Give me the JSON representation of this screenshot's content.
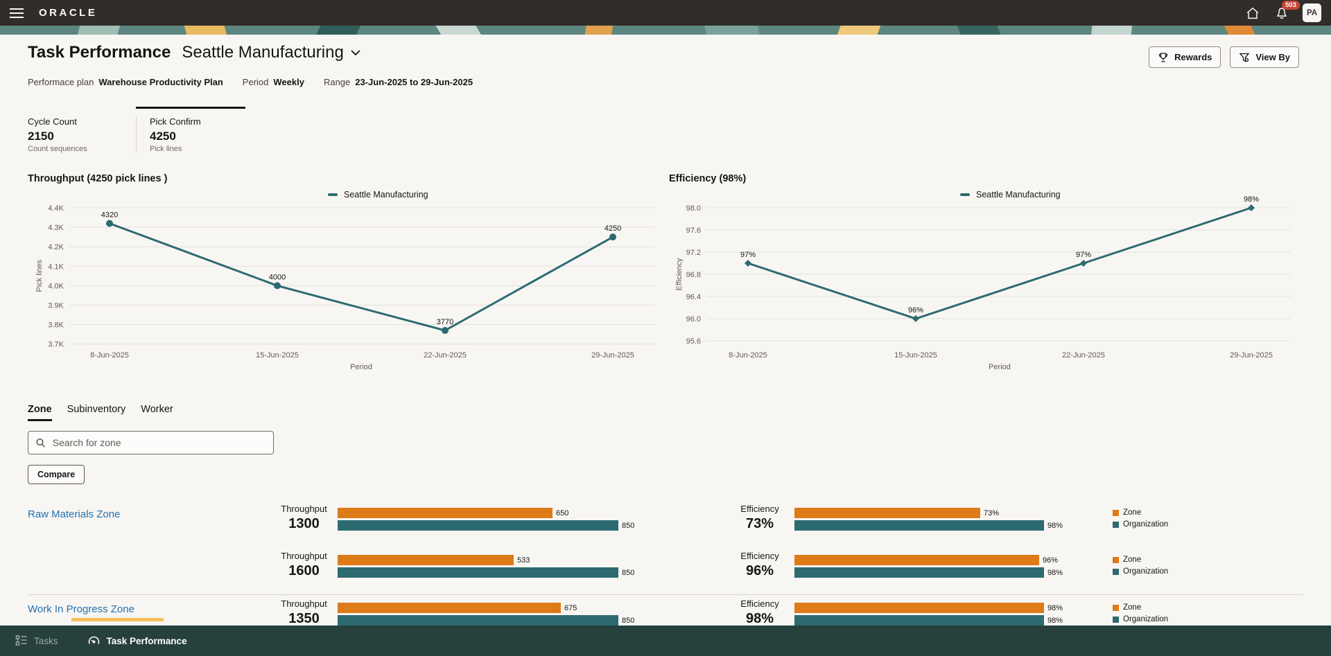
{
  "topbar": {
    "brand": "ORACLE",
    "notification_count": "503",
    "avatar_initials": "PA"
  },
  "header": {
    "title": "Task Performance",
    "org_selector": "Seattle Manufacturing",
    "rewards_label": "Rewards",
    "view_by_label": "View By"
  },
  "meta": {
    "plan_label": "Performace plan",
    "plan_value": "Warehouse Productivity Plan",
    "period_label": "Period",
    "period_value": "Weekly",
    "range_label": "Range",
    "range_value": "23-Jun-2025 to 29-Jun-2025"
  },
  "kpis": [
    {
      "title": "Cycle Count",
      "value": "2150",
      "subtitle": "Count sequences",
      "selected": false
    },
    {
      "title": "Pick Confirm",
      "value": "4250",
      "subtitle": "Pick lines",
      "selected": true
    }
  ],
  "chart_data": [
    {
      "type": "line",
      "title": "Throughput (4250 pick lines )",
      "legend": "Seattle Manufacturing",
      "x": [
        "8-Jun-2025",
        "15-Jun-2025",
        "22-Jun-2025",
        "29-Jun-2025"
      ],
      "values": [
        4320,
        4000,
        3770,
        4250
      ],
      "point_labels": [
        "4320",
        "4000",
        "3770",
        "4250"
      ],
      "xlabel": "Period",
      "ylabel": "Pick lines",
      "ytick_labels": [
        "4.4K",
        "4.3K",
        "4.2K",
        "4.1K",
        "4.0K",
        "3.9K",
        "3.8K",
        "3.7K"
      ],
      "ylim": [
        3700,
        4400
      ],
      "grid": true,
      "legend_position": "top",
      "marker": "circle",
      "line_color": "#2c6b70"
    },
    {
      "type": "line",
      "title": "Efficiency (98%)",
      "legend": "Seattle Manufacturing",
      "x": [
        "8-Jun-2025",
        "15-Jun-2025",
        "22-Jun-2025",
        "29-Jun-2025"
      ],
      "values": [
        97,
        96,
        97,
        98
      ],
      "point_labels": [
        "97%",
        "96%",
        "97%",
        "98%"
      ],
      "xlabel": "Period",
      "ylabel": "Efficiency",
      "ytick_labels": [
        "98.0",
        "97.6",
        "97.2",
        "96.8",
        "96.4",
        "96.0",
        "95.6"
      ],
      "ylim": [
        95.6,
        98.0
      ],
      "grid": true,
      "legend_position": "top",
      "marker": "diamond",
      "line_color": "#2c6b70"
    }
  ],
  "tabs": [
    {
      "label": "Zone",
      "active": true
    },
    {
      "label": "Subinventory",
      "active": false
    },
    {
      "label": "Worker",
      "active": false
    }
  ],
  "search": {
    "placeholder": "Search for zone"
  },
  "compare_label": "Compare",
  "zone_list": {
    "throughput_max": 850,
    "efficiency_max": 98,
    "legend": [
      {
        "label": "Zone",
        "color": "#dd7b19"
      },
      {
        "label": "Organization",
        "color": "#2c6b70"
      }
    ],
    "blocks": [
      {
        "name": "Raw Materials Zone",
        "highlighted": false,
        "rows": [
          {
            "metric_label": "Throughput",
            "metric_value": "1300",
            "zone_value": 650,
            "zone_label": "650",
            "org_value": 850,
            "org_label": "850",
            "eff_label": "Efficiency",
            "eff_value": "73%",
            "eff_zone": 73,
            "eff_zone_label": "73%",
            "eff_org": 98,
            "eff_org_label": "98%"
          },
          {
            "metric_label": "Throughput",
            "metric_value": "1600",
            "zone_value": 533,
            "zone_label": "533",
            "org_value": 850,
            "org_label": "850",
            "eff_label": "Efficiency",
            "eff_value": "96%",
            "eff_zone": 96,
            "eff_zone_label": "96%",
            "eff_org": 98,
            "eff_org_label": "98%"
          }
        ]
      },
      {
        "name": "Work In Progress Zone",
        "highlighted": true,
        "rows": [
          {
            "metric_label": "Throughput",
            "metric_value": "1350",
            "zone_value": 675,
            "zone_label": "675",
            "org_value": 850,
            "org_label": "850",
            "eff_label": "Efficiency",
            "eff_value": "98%",
            "eff_zone": 98,
            "eff_zone_label": "98%",
            "eff_org": 98,
            "eff_org_label": "98%"
          }
        ]
      }
    ]
  },
  "footer": {
    "items": [
      {
        "label": "Tasks",
        "active": false
      },
      {
        "label": "Task Performance",
        "active": true
      }
    ]
  },
  "colors": {
    "accent_teal": "#2c6b70",
    "accent_orange": "#dd7b19",
    "link_blue": "#2271b0",
    "badge_red": "#c74634",
    "topbar_bg": "#312d2a",
    "footer_bg": "#26403d",
    "highlight_yellow": "#f5c05a"
  }
}
